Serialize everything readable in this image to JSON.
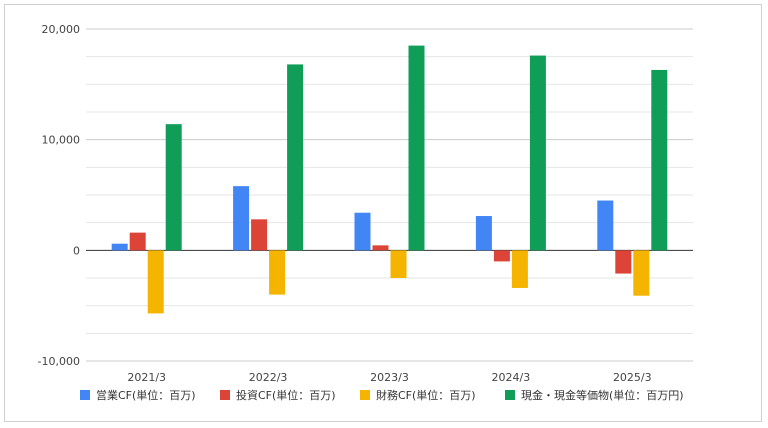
{
  "chart_data": {
    "type": "bar",
    "categories": [
      "2021/3",
      "2022/3",
      "2023/3",
      "2024/3",
      "2025/3"
    ],
    "series": [
      {
        "name": "営業CF(単位：百万)",
        "color": "#4285f4",
        "values": [
          600,
          5800,
          3400,
          3100,
          4500
        ]
      },
      {
        "name": "投資CF(単位：百万)",
        "color": "#db4437",
        "values": [
          1600,
          2800,
          450,
          -1000,
          -2100
        ]
      },
      {
        "name": "財務CF(単位：百万)",
        "color": "#f4b400",
        "values": [
          -5700,
          -4000,
          -2500,
          -3400,
          -4100
        ]
      },
      {
        "name": "現金・現金等価物(単位：百万円)",
        "color": "#0f9d58",
        "values": [
          11400,
          16800,
          18500,
          17600,
          16300
        ]
      }
    ],
    "y_ticks": [
      "20,000",
      "10,000",
      "0",
      "-10,000"
    ],
    "ylim": [
      -10000,
      20000
    ],
    "grid": true,
    "legend_position": "bottom"
  }
}
